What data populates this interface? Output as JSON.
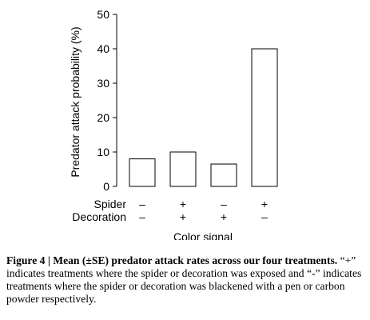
{
  "chart_data": {
    "type": "bar",
    "categories": [
      "Spider − / Decoration −",
      "Spider + / Decoration +",
      "Spider − / Decoration +",
      "Spider + / Decoration −"
    ],
    "values": [
      8,
      10,
      6.5,
      40
    ],
    "ylabel": "Predator attack probability (%)",
    "xlabel": "Color signal",
    "ylim": [
      0,
      50
    ],
    "yticks": [
      0,
      10,
      20,
      30,
      40,
      50
    ],
    "grid": false,
    "treatment_rows": [
      {
        "label": "Spider",
        "marks": [
          "–",
          "+",
          "–",
          "+"
        ]
      },
      {
        "label": "Decoration",
        "marks": [
          "–",
          "+",
          "+",
          "–"
        ]
      }
    ]
  },
  "caption": {
    "bold": "Figure 4 | Mean (±SE) predator attack rates across our four treatments.",
    "text": " “+” indicates treatments where the spider or decoration was exposed and “-” indicates treatments where the spider or decoration was blackened with a pen or carbon powder respectively."
  }
}
